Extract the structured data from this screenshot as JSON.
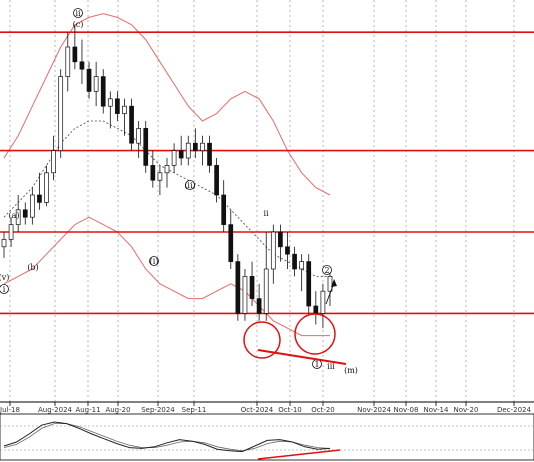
{
  "chart_data": {
    "type": "candlestick",
    "title": "",
    "xlabel": "",
    "ylabel": "",
    "x_ticks": [
      "Jul-18",
      "Aug-2024",
      "Aug-11",
      "Aug-20",
      "Sep-2024",
      "Sep-11",
      "Oct-2024",
      "Oct-10",
      "Oct-20",
      "Nov-2024",
      "Nov-08",
      "Nov-14",
      "Nov-20",
      "Dec-2024"
    ],
    "ylim": [
      0,
      100
    ],
    "horizontal_levels": [
      94,
      62,
      40,
      18
    ],
    "candles": [
      {
        "o": 36,
        "h": 40,
        "l": 33,
        "c": 38
      },
      {
        "o": 38,
        "h": 44,
        "l": 36,
        "c": 42
      },
      {
        "o": 42,
        "h": 50,
        "l": 40,
        "c": 46
      },
      {
        "o": 46,
        "h": 48,
        "l": 42,
        "c": 44
      },
      {
        "o": 44,
        "h": 52,
        "l": 42,
        "c": 50
      },
      {
        "o": 50,
        "h": 56,
        "l": 46,
        "c": 48
      },
      {
        "o": 48,
        "h": 58,
        "l": 47,
        "c": 56
      },
      {
        "o": 56,
        "h": 66,
        "l": 54,
        "c": 62
      },
      {
        "o": 62,
        "h": 84,
        "l": 60,
        "c": 82
      },
      {
        "o": 82,
        "h": 94,
        "l": 78,
        "c": 90
      },
      {
        "o": 90,
        "h": 96,
        "l": 84,
        "c": 86
      },
      {
        "o": 86,
        "h": 92,
        "l": 80,
        "c": 84
      },
      {
        "o": 84,
        "h": 86,
        "l": 76,
        "c": 78
      },
      {
        "o": 78,
        "h": 86,
        "l": 74,
        "c": 82
      },
      {
        "o": 82,
        "h": 84,
        "l": 72,
        "c": 74
      },
      {
        "o": 74,
        "h": 78,
        "l": 68,
        "c": 76
      },
      {
        "o": 76,
        "h": 78,
        "l": 70,
        "c": 72
      },
      {
        "o": 72,
        "h": 76,
        "l": 66,
        "c": 74
      },
      {
        "o": 74,
        "h": 76,
        "l": 62,
        "c": 64
      },
      {
        "o": 64,
        "h": 70,
        "l": 60,
        "c": 68
      },
      {
        "o": 68,
        "h": 70,
        "l": 56,
        "c": 58
      },
      {
        "o": 58,
        "h": 62,
        "l": 52,
        "c": 54
      },
      {
        "o": 54,
        "h": 58,
        "l": 50,
        "c": 56
      },
      {
        "o": 56,
        "h": 60,
        "l": 52,
        "c": 58
      },
      {
        "o": 58,
        "h": 64,
        "l": 56,
        "c": 62
      },
      {
        "o": 62,
        "h": 66,
        "l": 58,
        "c": 60
      },
      {
        "o": 60,
        "h": 66,
        "l": 58,
        "c": 64
      },
      {
        "o": 64,
        "h": 68,
        "l": 60,
        "c": 62
      },
      {
        "o": 62,
        "h": 66,
        "l": 58,
        "c": 64
      },
      {
        "o": 64,
        "h": 66,
        "l": 56,
        "c": 58
      },
      {
        "o": 58,
        "h": 60,
        "l": 48,
        "c": 50
      },
      {
        "o": 50,
        "h": 54,
        "l": 40,
        "c": 42
      },
      {
        "o": 42,
        "h": 46,
        "l": 30,
        "c": 32
      },
      {
        "o": 32,
        "h": 34,
        "l": 16,
        "c": 18
      },
      {
        "o": 18,
        "h": 30,
        "l": 16,
        "c": 28
      },
      {
        "o": 28,
        "h": 32,
        "l": 20,
        "c": 22
      },
      {
        "o": 22,
        "h": 26,
        "l": 16,
        "c": 18
      },
      {
        "o": 18,
        "h": 40,
        "l": 16,
        "c": 30
      },
      {
        "o": 30,
        "h": 42,
        "l": 26,
        "c": 40
      },
      {
        "o": 40,
        "h": 42,
        "l": 32,
        "c": 36
      },
      {
        "o": 36,
        "h": 40,
        "l": 30,
        "c": 34
      },
      {
        "o": 34,
        "h": 36,
        "l": 28,
        "c": 30
      },
      {
        "o": 30,
        "h": 34,
        "l": 24,
        "c": 32
      },
      {
        "o": 32,
        "h": 34,
        "l": 18,
        "c": 20
      },
      {
        "o": 20,
        "h": 24,
        "l": 15,
        "c": 18
      },
      {
        "o": 18,
        "h": 26,
        "l": 14,
        "c": 24
      },
      {
        "o": 24,
        "h": 30,
        "l": 20,
        "c": 28
      }
    ],
    "bollinger": {
      "upper": [
        60,
        66,
        74,
        82,
        90,
        96,
        98,
        99,
        98,
        96,
        92,
        86,
        80,
        74,
        70,
        72,
        76,
        78,
        76,
        70,
        62,
        56,
        52,
        50
      ],
      "middle": [
        44,
        48,
        52,
        58,
        64,
        68,
        70,
        70,
        68,
        66,
        62,
        58,
        56,
        54,
        52,
        50,
        46,
        42,
        38,
        34,
        32,
        30,
        28,
        28
      ],
      "lower": [
        26,
        28,
        30,
        34,
        38,
        42,
        44,
        42,
        40,
        36,
        30,
        26,
        24,
        22,
        22,
        24,
        26,
        24,
        20,
        16,
        14,
        12,
        12,
        12
      ]
    },
    "oscillator": {
      "main": [
        30,
        40,
        60,
        82,
        90,
        86,
        74,
        60,
        48,
        36,
        26,
        24,
        28,
        38,
        46,
        42,
        34,
        22,
        18,
        16,
        30,
        44,
        46,
        40,
        28,
        22,
        24
      ],
      "signal": [
        26,
        34,
        52,
        74,
        86,
        86,
        78,
        66,
        54,
        42,
        32,
        26,
        26,
        32,
        40,
        42,
        38,
        28,
        22,
        18,
        24,
        36,
        42,
        40,
        32,
        26,
        24
      ]
    },
    "annotations": {
      "wave_ii": "ii",
      "wave_c": "(c)",
      "wave_a": "(a)",
      "wave_b": "(b)",
      "wave_v": "(v)",
      "wave_i": "i",
      "wave_ii_circle": "(ii)",
      "wave_i_circle": "(i)",
      "wave_ii_small": "ii",
      "wave_2_circle": "2",
      "wave_1_circle": "1",
      "wave_iii": "iii",
      "wave_m": "(m)"
    },
    "colors": {
      "level_line": "#e01010",
      "band": "#e86a6a",
      "mid_band": "#444444",
      "candle": "#111111",
      "trend": "#e01010",
      "grid": "#999999",
      "oscillator": "#222222"
    }
  }
}
